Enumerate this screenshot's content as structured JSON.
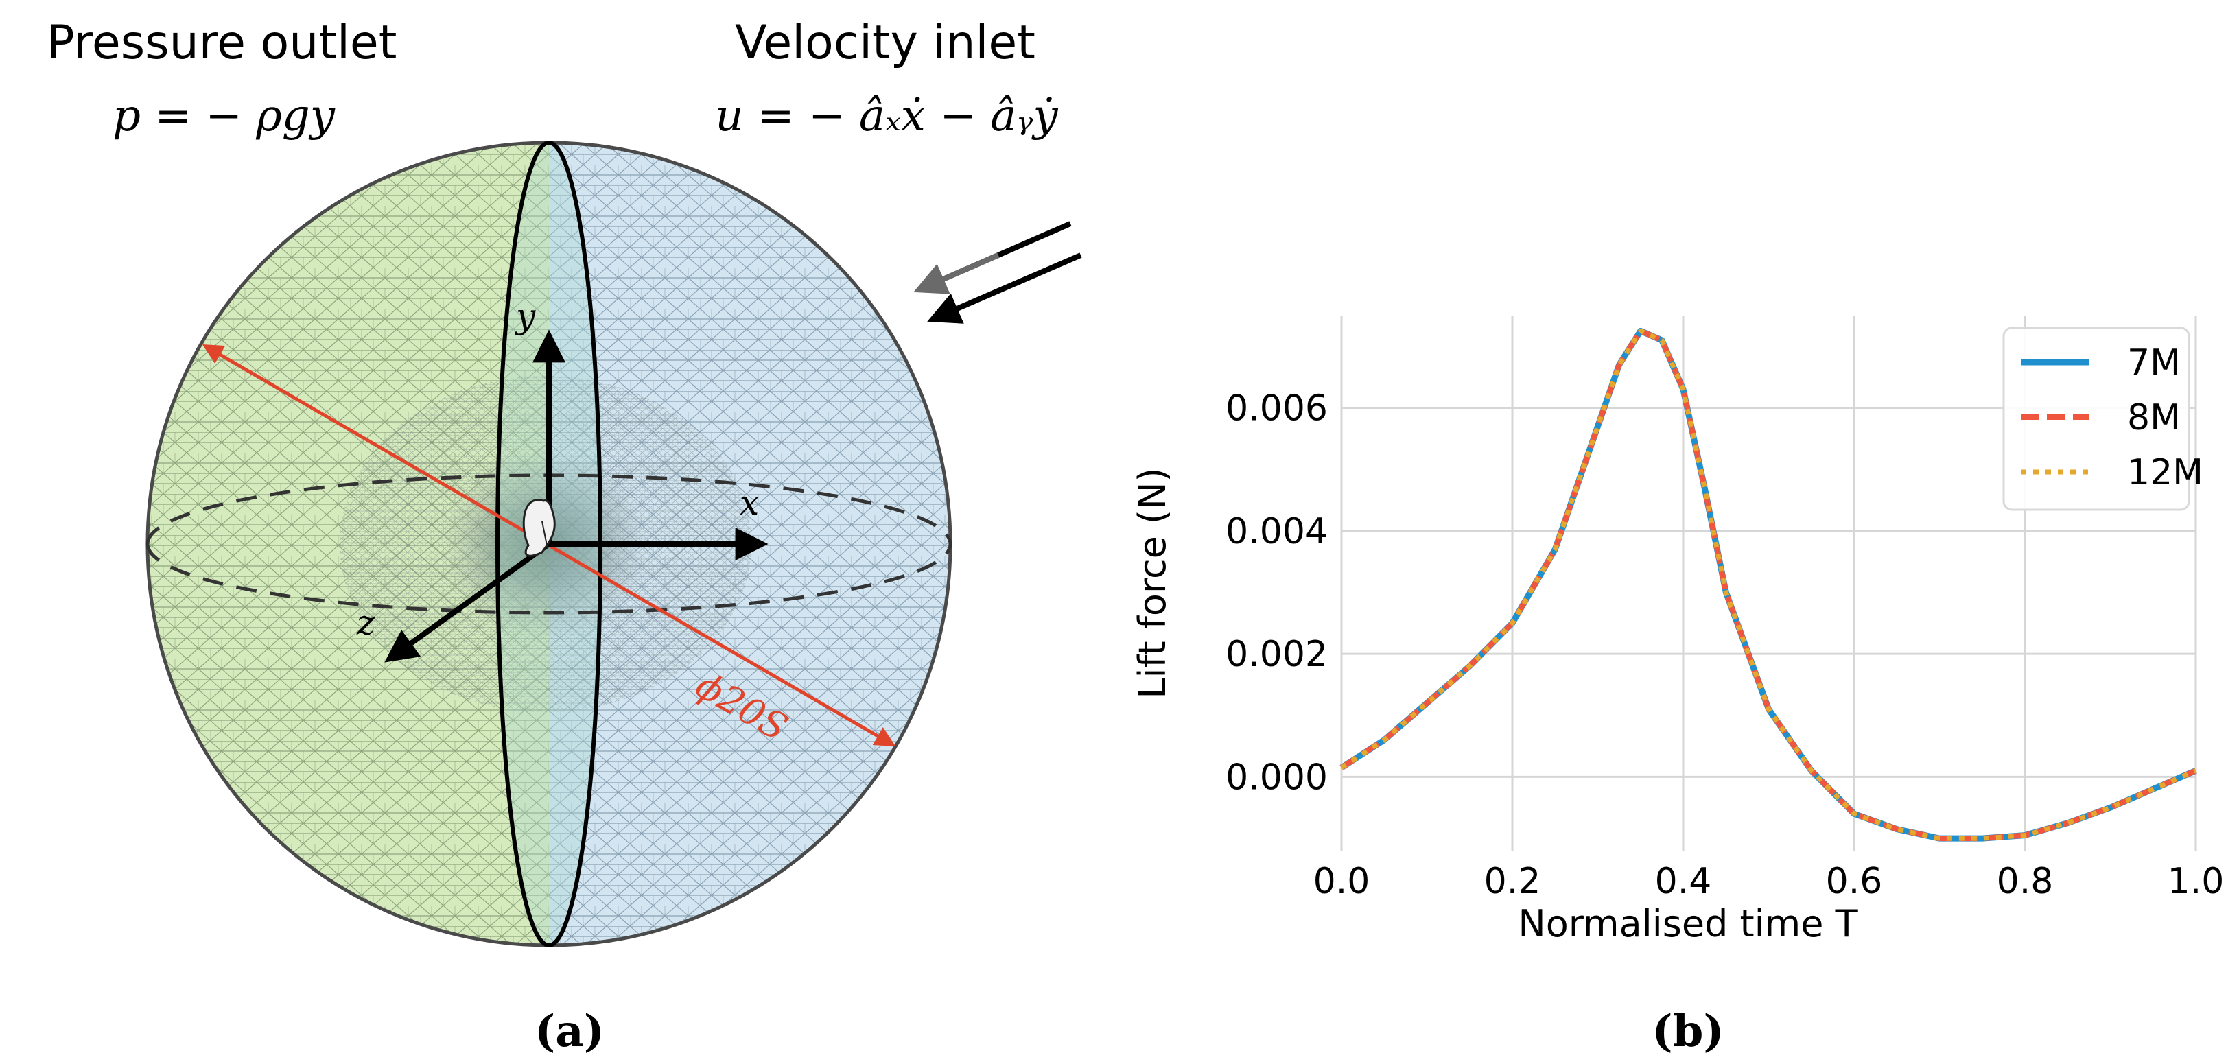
{
  "panel_a": {
    "outlet_title": "Pressure outlet",
    "outlet_equation": "p = − ρgy",
    "inlet_title": "Velocity inlet",
    "inlet_equation": "u = − âₓẋ − âᵧẏ",
    "axis_x": "x",
    "axis_y": "y",
    "axis_z": "z",
    "diameter_label": "ϕ20S",
    "caption": "(a)",
    "colors": {
      "outlet_mesh": "#d3e8b8",
      "inlet_mesh": "#cfe2ef",
      "diameter_arrow": "#e0452c",
      "axes": "#000000"
    }
  },
  "panel_b": {
    "caption": "(b)"
  },
  "chart_data": {
    "type": "line",
    "title": "",
    "xlabel": "Normalised time T",
    "ylabel": "Lift force (N)",
    "xlim": [
      0.0,
      1.0
    ],
    "ylim": [
      -0.0012,
      0.0075
    ],
    "xticks": [
      0.0,
      0.2,
      0.4,
      0.6,
      0.8,
      1.0
    ],
    "xtick_labels": [
      "0.0",
      "0.2",
      "0.4",
      "0.6",
      "0.8",
      "1.0"
    ],
    "yticks": [
      0.0,
      0.002,
      0.004,
      0.006
    ],
    "ytick_labels": [
      "0.000",
      "0.002",
      "0.004",
      "0.006"
    ],
    "grid": true,
    "legend_position": "top-right",
    "x": [
      0.0,
      0.05,
      0.1,
      0.15,
      0.2,
      0.25,
      0.3,
      0.325,
      0.35,
      0.375,
      0.4,
      0.425,
      0.45,
      0.5,
      0.55,
      0.6,
      0.65,
      0.7,
      0.75,
      0.8,
      0.85,
      0.9,
      0.95,
      1.0
    ],
    "series": [
      {
        "name": "7M",
        "color": "#1f8fce",
        "dash": "solid",
        "values": [
          0.00015,
          0.0006,
          0.0012,
          0.0018,
          0.0025,
          0.0037,
          0.0057,
          0.0067,
          0.00725,
          0.0071,
          0.0063,
          0.0047,
          0.003,
          0.0011,
          0.0001,
          -0.0006,
          -0.00085,
          -0.001,
          -0.001,
          -0.00095,
          -0.00075,
          -0.0005,
          -0.0002,
          0.0001
        ]
      },
      {
        "name": "8M",
        "color": "#f0563e",
        "dash": "dashed",
        "values": [
          0.00015,
          0.0006,
          0.0012,
          0.0018,
          0.0025,
          0.0037,
          0.0057,
          0.0067,
          0.00725,
          0.0071,
          0.0063,
          0.0047,
          0.003,
          0.0011,
          0.0001,
          -0.0006,
          -0.00085,
          -0.001,
          -0.001,
          -0.00095,
          -0.00075,
          -0.0005,
          -0.0002,
          0.0001
        ]
      },
      {
        "name": "12M",
        "color": "#e6a72e",
        "dash": "dotted",
        "values": [
          0.00015,
          0.0006,
          0.0012,
          0.0018,
          0.0025,
          0.0037,
          0.0057,
          0.0067,
          0.00725,
          0.0071,
          0.0063,
          0.0047,
          0.003,
          0.0011,
          0.0001,
          -0.0006,
          -0.00085,
          -0.001,
          -0.001,
          -0.00095,
          -0.00075,
          -0.0005,
          -0.0002,
          0.0001
        ]
      }
    ]
  }
}
